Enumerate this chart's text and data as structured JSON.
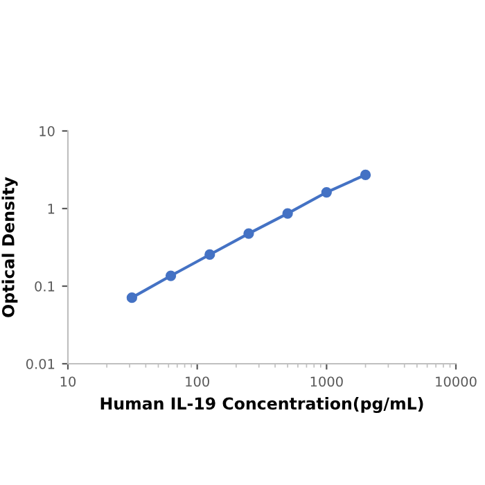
{
  "chart_data": {
    "type": "line",
    "xlabel": "Human IL-19 Concentration(pg/mL)",
    "ylabel": "Optical Density",
    "x": [
      31.25,
      62.5,
      125,
      250,
      500,
      1000,
      2000
    ],
    "series": [
      {
        "color": "#4472c4",
        "values": [
          0.071,
          0.136,
          0.255,
          0.476,
          0.865,
          1.62,
          2.72
        ]
      }
    ],
    "log": "xy",
    "xlim": [
      10,
      10000
    ],
    "ylim": [
      0.01,
      10
    ],
    "xticks": [
      10,
      100,
      1000,
      10000
    ],
    "yticks": [
      0.01,
      0.1,
      1,
      10
    ],
    "marker": "circle",
    "line_style": "solid",
    "grid": false,
    "legend": false
  }
}
